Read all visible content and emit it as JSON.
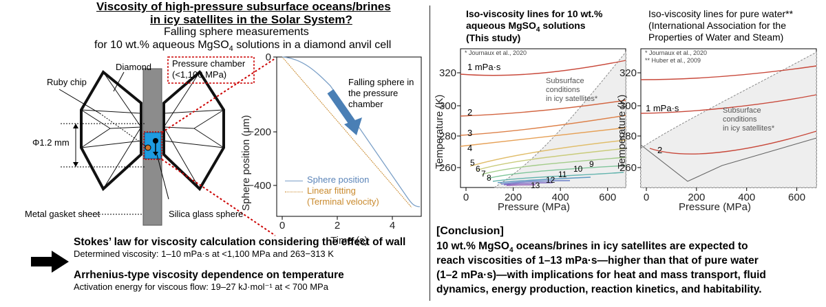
{
  "title": {
    "line1": "Viscosity of high-pressure subsurface oceans/brines",
    "line2": "in icy satellites in the Solar System?",
    "sub1": "Falling sphere measurements",
    "sub2_pre": "for 10 wt.% aqueous MgSO",
    "sub2_sub": "4",
    "sub2_post": " solutions in a diamond anvil cell"
  },
  "dac": {
    "diamond": "Diamond",
    "ruby": "Ruby chip",
    "pressure_chamber_1": "Pressure chamber",
    "pressure_chamber_2": "(<1,100 MPa)",
    "phi": "Φ1.2 mm",
    "gasket": "Metal gasket sheet",
    "silica": "Silica glass sphere"
  },
  "fall_chart": {
    "annot1": "Falling sphere in",
    "annot2": "the pressure",
    "annot3": "chamber",
    "legend_sphere": "Sphere position",
    "legend_fit1": "Linear fitting",
    "legend_fit2": "(Terminal velocity)",
    "ylabel": "Sphere position (μm)",
    "xlabel": "Time (s)",
    "yticks": [
      "0",
      "−200",
      "−400"
    ],
    "xticks": [
      "0",
      "2",
      "4"
    ]
  },
  "stokes": {
    "title": "Stokes’ law for viscosity calculation considering the effect of wall",
    "body": "Determined viscosity: 1–10 mPa·s at <1,100 MPa and 263−313 K"
  },
  "arrhenius": {
    "title": "Arrhenius-type viscosity dependence on temperature",
    "body": "Activation energy for viscous flow: 19–27 kJ·mol⁻¹ at < 700 MPa"
  },
  "mg_chart": {
    "title1": "Iso-viscosity lines for 10 wt.%",
    "title2_pre": "aqueous MgSO",
    "title2_sub": "4",
    "title2_post": " solutions",
    "title3": "(This study)",
    "ref1": "* Journaux et al., 2020",
    "region1": "Subsurface",
    "region2": "conditions",
    "region3": "in icy satellites*",
    "ylabel": "Temperature (K)",
    "xlabel": "Pressure (MPa)",
    "yticks": [
      "320",
      "300",
      "280",
      "260"
    ],
    "xticks": [
      "0",
      "200",
      "400",
      "600"
    ],
    "line_labels": [
      "1 mPa·s",
      "2",
      "3",
      "4",
      "5",
      "6",
      "7",
      "8",
      "9",
      "10",
      "11",
      "12",
      "13"
    ]
  },
  "water_chart": {
    "title1": "Iso-viscosity lines for pure water**",
    "title2": "(International Association for the",
    "title3": "Properties of Water and Steam)",
    "ref1": "* Journaux et al., 2020",
    "ref2": "** Huber et al., 2009",
    "region1": "Subsurface",
    "region2": "conditions",
    "region3": "in icy satellites*",
    "ylabel": "Temperature (K)",
    "xlabel": "Pressure (MPa)",
    "yticks": [
      "320",
      "300",
      "280",
      "260"
    ],
    "xticks": [
      "0",
      "200",
      "400",
      "600"
    ],
    "line_labels": [
      "1 mPa·s",
      "2"
    ]
  },
  "conclusion": {
    "head": "[Conclusion]",
    "l1_pre": "10 wt.% MgSO",
    "l1_sub": "4",
    "l1_post": " oceans/brines in icy satellites are expected to",
    "l2": "reach viscosities of 1–13 mPa·s—higher than that of pure water",
    "l3": "(1–2 mPa·s)—with implications for heat and mass transport, fluid",
    "l4": "dynamics, energy production, reaction kinetics, and habitability."
  },
  "colors": {
    "chamber_blue": "#1e9be0",
    "arrow_blue": "#4a7fb5",
    "dotted_red": "#cc0000",
    "fit_orange": "#c98a2e",
    "sphere_line": "#7a9fc7"
  }
}
